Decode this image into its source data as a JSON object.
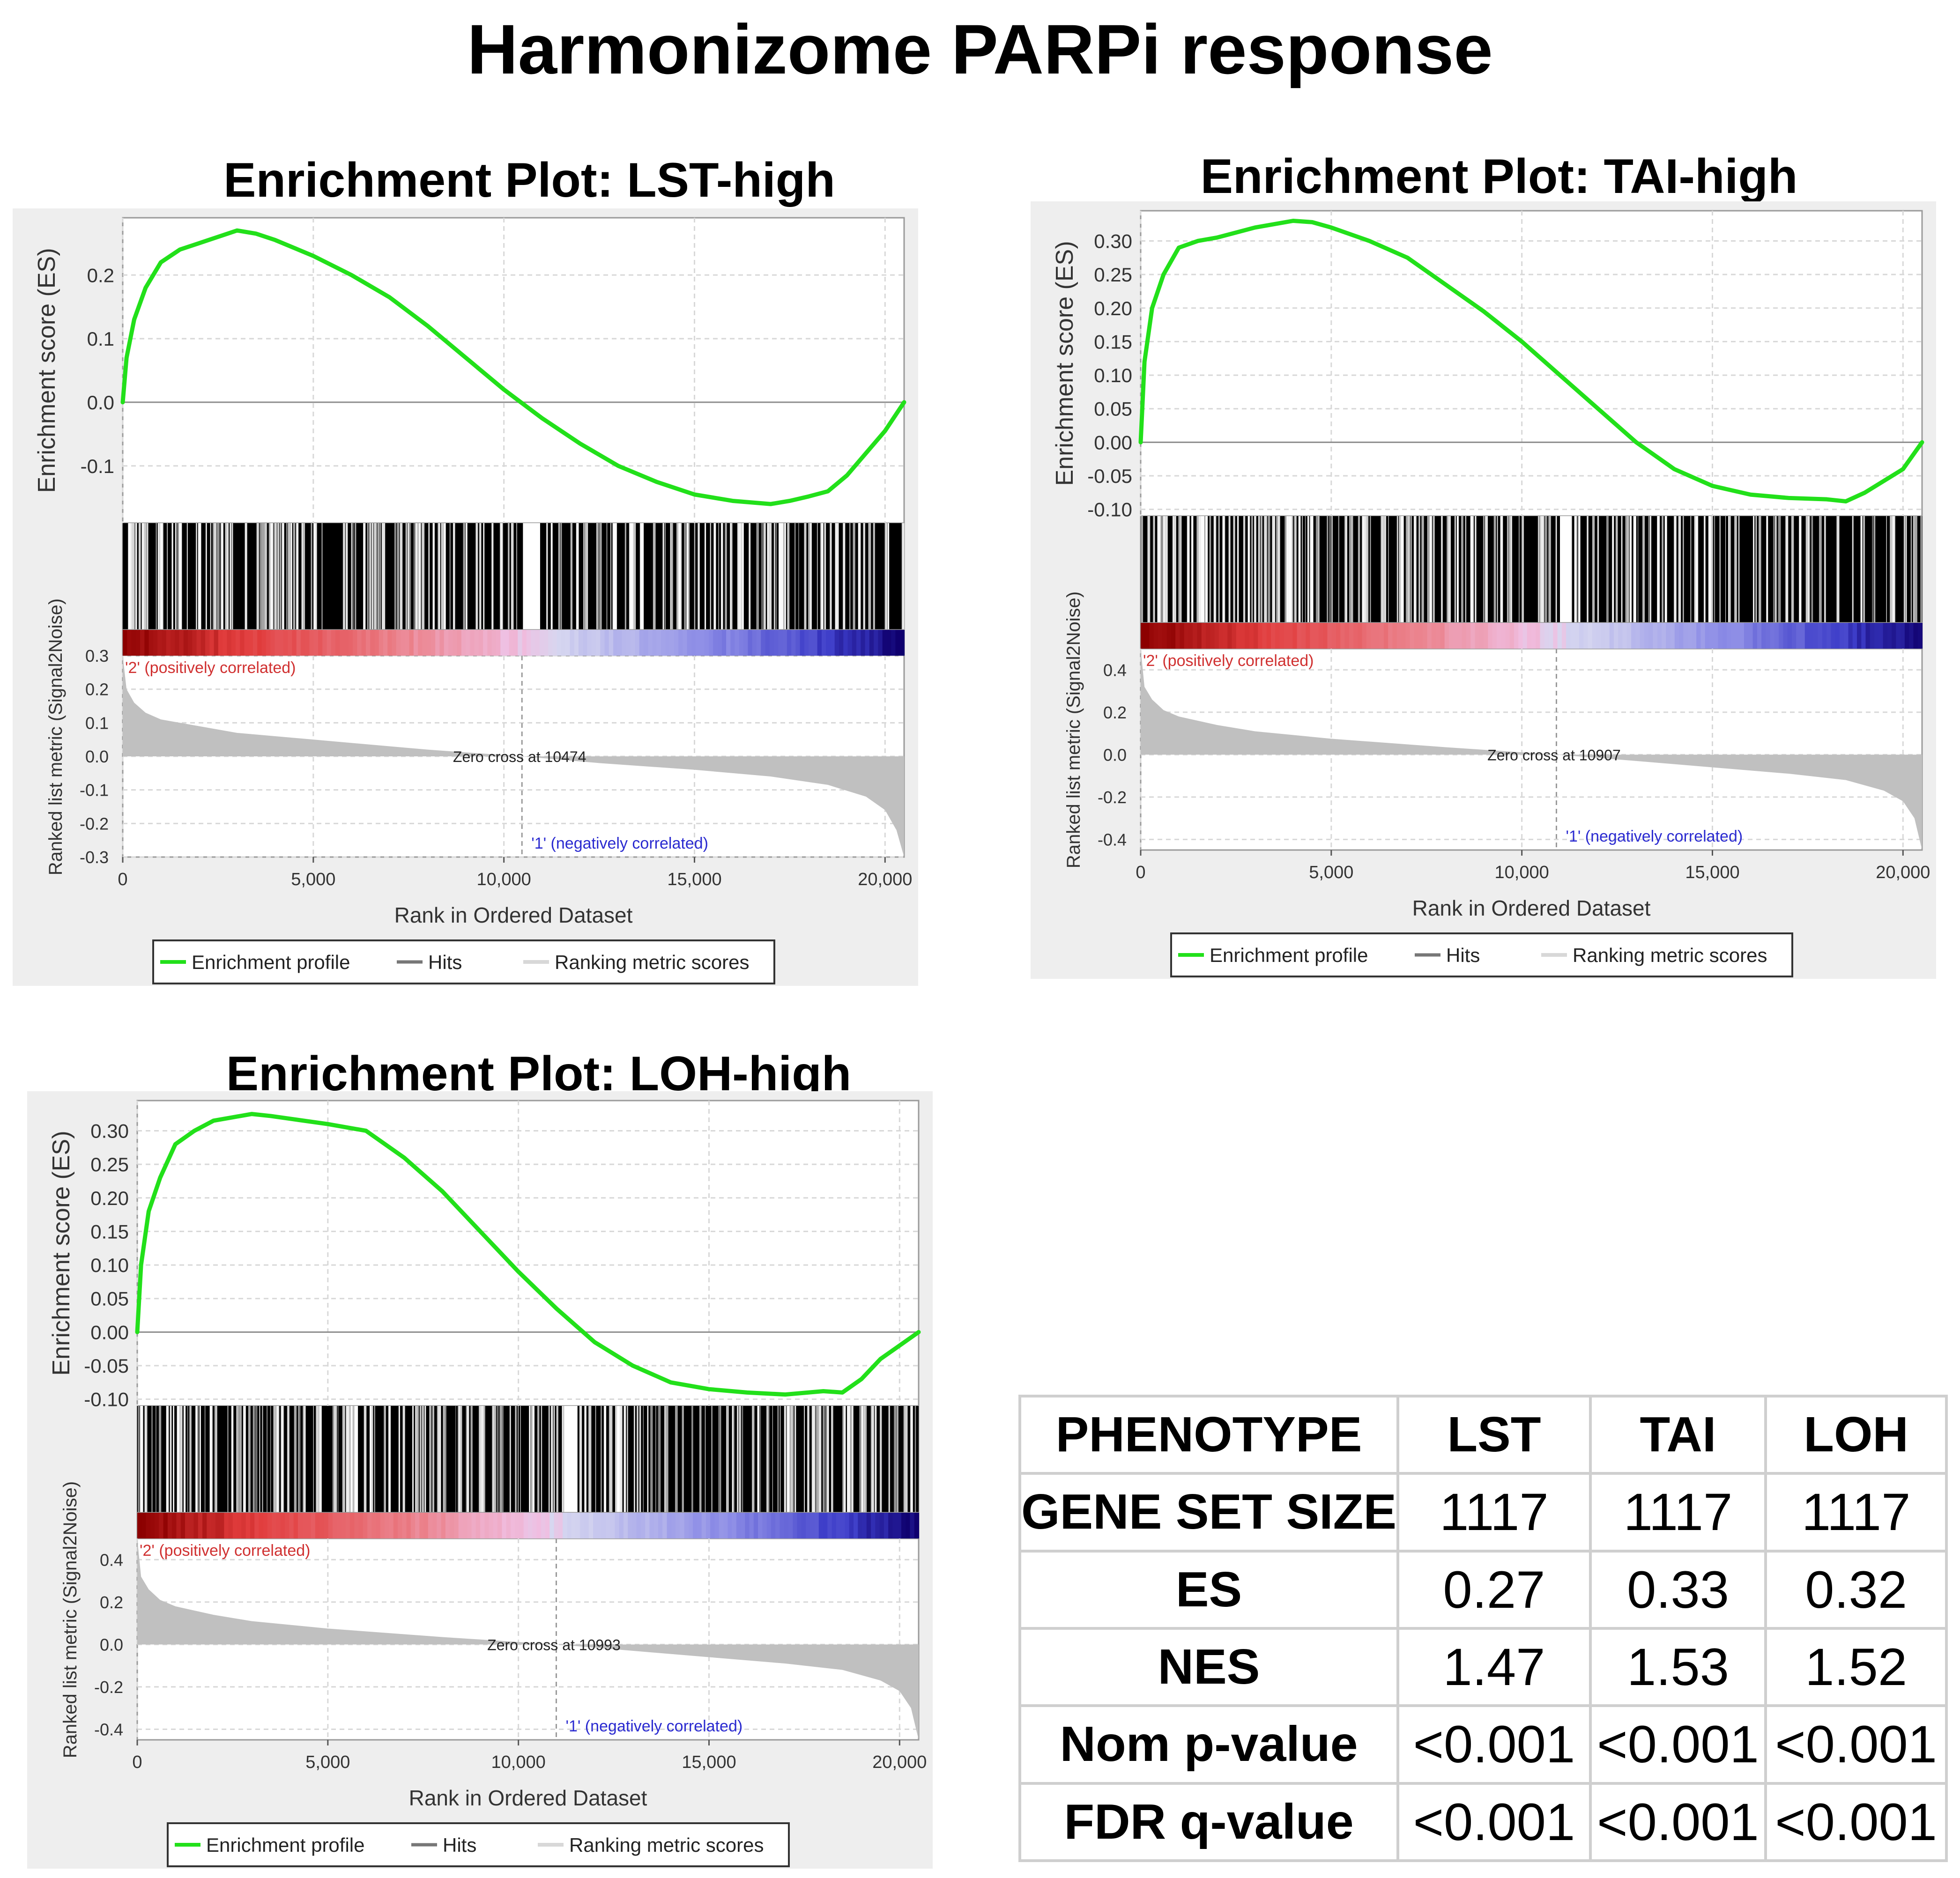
{
  "title": "Harmonizome PARPi response",
  "plot_common": {
    "es_axis_label": "Enrichment score (ES)",
    "metric_axis_label": "Ranked list metric (Signal2Noise)",
    "x_axis_label": "Rank in Ordered Dataset",
    "pos_label": "'2' (positively correlated)",
    "neg_label": "'1' (negatively correlated)",
    "legend": [
      "Enrichment profile",
      "Hits",
      "Ranking metric scores"
    ],
    "x_ticks": [
      0,
      5000,
      10000,
      15000,
      20000
    ],
    "x_tick_labels": [
      "0",
      "5,000",
      "10,000",
      "15,000",
      "20,000"
    ],
    "colors": {
      "enrichment": "#22e01a",
      "hits": "#000000",
      "metric": "#c0c0c0",
      "pos_text": "#d03030",
      "neg_text": "#2a2ad0",
      "panel_bg": "#eeeeee"
    }
  },
  "chart_data": [
    {
      "type": "line",
      "title": "Enrichment Plot: LST-high",
      "xlabel": "Rank in Ordered Dataset",
      "ylabel": "Enrichment score (ES)",
      "xlim": [
        0,
        20500
      ],
      "es_ylim": [
        -0.19,
        0.29
      ],
      "es_ticks": [
        -0.1,
        0.0,
        0.1,
        0.2
      ],
      "es_tick_labels": [
        "-0.1",
        "0.0",
        "0.1",
        "0.2"
      ],
      "es_curve": {
        "x": [
          0,
          100,
          300,
          600,
          1000,
          1500,
          2000,
          2500,
          3000,
          3500,
          4000,
          5000,
          6000,
          7000,
          8000,
          9000,
          10000,
          11000,
          12000,
          13000,
          14000,
          15000,
          16000,
          17000,
          17500,
          18000,
          18500,
          19000,
          19500,
          20000,
          20500
        ],
        "y": [
          0.0,
          0.07,
          0.13,
          0.18,
          0.22,
          0.24,
          0.25,
          0.26,
          0.27,
          0.265,
          0.255,
          0.23,
          0.2,
          0.165,
          0.12,
          0.07,
          0.02,
          -0.025,
          -0.065,
          -0.1,
          -0.125,
          -0.145,
          -0.155,
          -0.16,
          -0.155,
          -0.148,
          -0.14,
          -0.115,
          -0.08,
          -0.045,
          0.0
        ]
      },
      "metric_ylim": [
        -0.3,
        0.3
      ],
      "metric_ticks": [
        -0.3,
        -0.2,
        -0.1,
        0.0,
        0.1,
        0.2,
        0.3
      ],
      "metric_tick_labels": [
        "-0.3",
        "-0.2",
        "-0.1",
        "0.0",
        "0.1",
        "0.2",
        "0.3"
      ],
      "metric_curve": {
        "x": [
          0,
          100,
          300,
          600,
          1000,
          2000,
          3000,
          5000,
          8000,
          10474,
          12500,
          15000,
          17000,
          18500,
          19500,
          20000,
          20300,
          20500
        ],
        "y": [
          0.3,
          0.2,
          0.16,
          0.13,
          0.11,
          0.09,
          0.07,
          0.05,
          0.02,
          0.0,
          -0.02,
          -0.04,
          -0.06,
          -0.085,
          -0.12,
          -0.16,
          -0.22,
          -0.3
        ]
      },
      "zero_cross": 10474,
      "zero_cross_label": "Zero cross at 10474",
      "hit_gaps": [
        [
          10500,
          10950
        ]
      ],
      "hit_density": 0.55
    },
    {
      "type": "line",
      "title": "Enrichment Plot: TAI-high",
      "xlabel": "Rank in Ordered Dataset",
      "ylabel": "Enrichment score (ES)",
      "xlim": [
        0,
        20500
      ],
      "es_ylim": [
        -0.11,
        0.345
      ],
      "es_ticks": [
        -0.1,
        -0.05,
        0.0,
        0.05,
        0.1,
        0.15,
        0.2,
        0.25,
        0.3
      ],
      "es_tick_labels": [
        "-0.10",
        "-0.05",
        "0.00",
        "0.05",
        "0.10",
        "0.15",
        "0.20",
        "0.25",
        "0.30"
      ],
      "es_curve": {
        "x": [
          0,
          100,
          300,
          600,
          1000,
          1500,
          2000,
          3000,
          4000,
          4500,
          5000,
          6000,
          7000,
          8000,
          9000,
          10000,
          11000,
          12000,
          13000,
          14000,
          15000,
          16000,
          17000,
          18000,
          18500,
          19000,
          20000,
          20500
        ],
        "y": [
          0.0,
          0.12,
          0.2,
          0.25,
          0.29,
          0.3,
          0.305,
          0.32,
          0.33,
          0.328,
          0.32,
          0.3,
          0.275,
          0.235,
          0.195,
          0.15,
          0.1,
          0.05,
          0.0,
          -0.04,
          -0.065,
          -0.078,
          -0.083,
          -0.085,
          -0.088,
          -0.075,
          -0.04,
          0.0
        ]
      },
      "metric_ylim": [
        -0.45,
        0.5
      ],
      "metric_ticks": [
        -0.4,
        -0.2,
        0.0,
        0.2,
        0.4
      ],
      "metric_tick_labels": [
        "-0.4",
        "-0.2",
        "0.0",
        "0.2",
        "0.4"
      ],
      "metric_curve": {
        "x": [
          0,
          100,
          300,
          600,
          1000,
          2000,
          3000,
          5000,
          8000,
          10907,
          13000,
          15000,
          17000,
          18500,
          19500,
          20000,
          20300,
          20500
        ],
        "y": [
          0.5,
          0.32,
          0.26,
          0.21,
          0.18,
          0.14,
          0.11,
          0.075,
          0.035,
          0.0,
          -0.03,
          -0.06,
          -0.09,
          -0.12,
          -0.17,
          -0.22,
          -0.3,
          -0.45
        ]
      },
      "zero_cross": 10907,
      "zero_cross_label": "Zero cross at 10907",
      "hit_gaps": [
        [
          11000,
          11300
        ]
      ],
      "hit_density": 0.55
    },
    {
      "type": "line",
      "title": "Enrichment Plot: LOH-high",
      "xlabel": "Rank in Ordered Dataset",
      "ylabel": "Enrichment score (ES)",
      "xlim": [
        0,
        20500
      ],
      "es_ylim": [
        -0.11,
        0.345
      ],
      "es_ticks": [
        -0.1,
        -0.05,
        0.0,
        0.05,
        0.1,
        0.15,
        0.2,
        0.25,
        0.3
      ],
      "es_tick_labels": [
        "-0.10",
        "-0.05",
        "0.00",
        "0.05",
        "0.10",
        "0.15",
        "0.20",
        "0.25",
        "0.30"
      ],
      "es_curve": {
        "x": [
          0,
          100,
          300,
          600,
          1000,
          1500,
          2000,
          2500,
          3000,
          3500,
          4000,
          5000,
          6000,
          7000,
          8000,
          9000,
          10000,
          11000,
          12000,
          13000,
          14000,
          15000,
          16000,
          17000,
          18000,
          18500,
          19000,
          19500,
          20000,
          20500
        ],
        "y": [
          0.0,
          0.1,
          0.18,
          0.23,
          0.28,
          0.3,
          0.315,
          0.32,
          0.325,
          0.322,
          0.318,
          0.31,
          0.3,
          0.26,
          0.21,
          0.15,
          0.09,
          0.035,
          -0.015,
          -0.05,
          -0.075,
          -0.085,
          -0.09,
          -0.093,
          -0.088,
          -0.09,
          -0.07,
          -0.04,
          -0.02,
          0.0
        ]
      },
      "metric_ylim": [
        -0.45,
        0.5
      ],
      "metric_ticks": [
        -0.4,
        -0.2,
        0.0,
        0.2,
        0.4
      ],
      "metric_tick_labels": [
        "-0.4",
        "-0.2",
        "0.0",
        "0.2",
        "0.4"
      ],
      "metric_curve": {
        "x": [
          0,
          100,
          300,
          600,
          1000,
          2000,
          3000,
          5000,
          8000,
          10993,
          13000,
          15000,
          17000,
          18500,
          19500,
          20000,
          20300,
          20500
        ],
        "y": [
          0.5,
          0.32,
          0.26,
          0.21,
          0.18,
          0.14,
          0.11,
          0.075,
          0.035,
          0.0,
          -0.03,
          -0.06,
          -0.09,
          -0.12,
          -0.17,
          -0.22,
          -0.3,
          -0.45
        ]
      },
      "zero_cross": 10993,
      "zero_cross_label": "Zero cross at 10993",
      "hit_gaps": [
        [
          11200,
          11550
        ]
      ],
      "hit_density": 0.55
    }
  ],
  "table": {
    "header": [
      "PHENOTYPE",
      "LST",
      "TAI",
      "LOH"
    ],
    "rows": [
      {
        "label": "GENE SET SIZE",
        "values": [
          "1117",
          "1117",
          "1117"
        ]
      },
      {
        "label": "ES",
        "values": [
          "0.27",
          "0.33",
          "0.32"
        ]
      },
      {
        "label": "NES",
        "values": [
          "1.47",
          "1.53",
          "1.52"
        ]
      },
      {
        "label": "Nom p-value",
        "values": [
          "<0.001",
          "<0.001",
          "<0.001"
        ]
      },
      {
        "label": "FDR q-value",
        "values": [
          "<0.001",
          "<0.001",
          "<0.001"
        ]
      }
    ]
  }
}
